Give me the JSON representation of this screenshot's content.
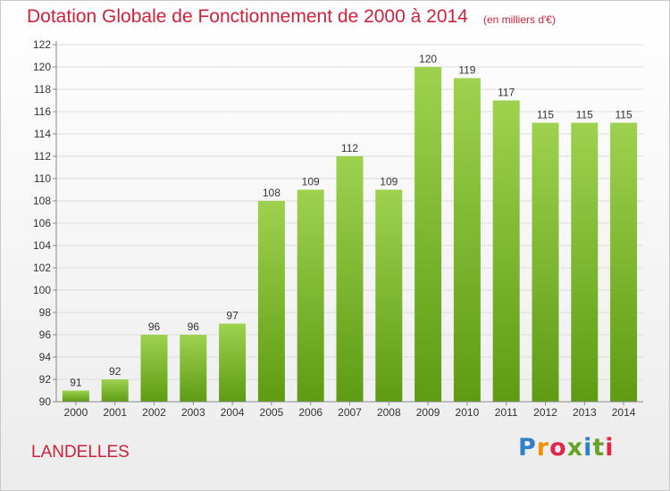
{
  "header": {
    "title": "Dotation Globale de Fonctionnement de 2000 à 2014",
    "unit_note": "(en milliers d'€)"
  },
  "footer": {
    "commune": "LANDELLES",
    "logo_letters": [
      "P",
      "r",
      "o",
      "x",
      "i",
      "t",
      "i"
    ]
  },
  "colors": {
    "title": "#d0213a",
    "bar_top": "#9ed24e",
    "bar_bottom": "#5e9b13",
    "grid": "#dddddd",
    "axis": "#888888",
    "text": "#333333"
  },
  "chart_data": {
    "type": "bar",
    "title": "Dotation Globale de Fonctionnement de 2000 à 2014",
    "subtitle": "(en milliers d'€)",
    "xlabel": "",
    "ylabel": "",
    "categories": [
      "2000",
      "2001",
      "2002",
      "2003",
      "2004",
      "2005",
      "2006",
      "2007",
      "2008",
      "2009",
      "2010",
      "2011",
      "2012",
      "2013",
      "2014"
    ],
    "values": [
      91,
      92,
      96,
      96,
      97,
      108,
      109,
      112,
      109,
      120,
      119,
      117,
      115,
      115,
      115
    ],
    "ylim": [
      90,
      122
    ],
    "yticks": [
      90,
      92,
      94,
      96,
      98,
      100,
      102,
      104,
      106,
      108,
      110,
      112,
      114,
      116,
      118,
      120,
      122
    ],
    "grid": true,
    "legend": "none",
    "data_labels": true
  }
}
